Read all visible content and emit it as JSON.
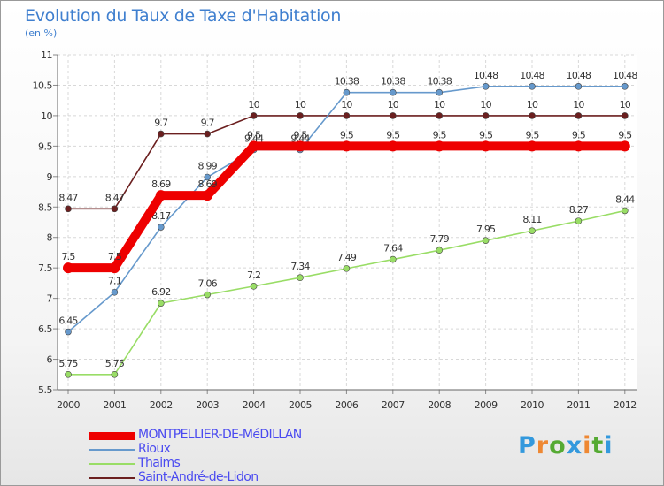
{
  "title": "Evolution du Taux de Taxe d'Habitation",
  "subtitle": "(en %)",
  "chart_data": {
    "type": "line",
    "title": "Evolution du Taux de Taxe d'Habitation",
    "ylabel": "(en %)",
    "xlabel": "",
    "x": [
      2000,
      2001,
      2002,
      2003,
      2004,
      2005,
      2006,
      2007,
      2008,
      2009,
      2010,
      2011,
      2012
    ],
    "ylim": [
      5.5,
      11
    ],
    "yticks": [
      5.5,
      6,
      6.5,
      7,
      7.5,
      8,
      8.5,
      9,
      9.5,
      10,
      10.5,
      11
    ],
    "ytick_labels": [
      "5.5",
      "6",
      "6.5",
      "7",
      "7.5",
      "8",
      "8.5",
      "9",
      "9.5",
      "10",
      "10.5",
      "11"
    ],
    "grid": true,
    "legend_position": "bottom-left",
    "series": [
      {
        "name": "Saint-André-de-Lidon",
        "color": "#6b1f1f",
        "values": [
          8.47,
          8.47,
          9.7,
          9.7,
          10,
          10,
          10,
          10,
          10,
          10,
          10,
          10,
          10
        ],
        "labels": [
          "8.47",
          "8.47",
          "9.7",
          "9.7",
          "10",
          "10",
          "10",
          "10",
          "10",
          "10",
          "10",
          "10",
          "10"
        ]
      },
      {
        "name": "Thaims",
        "color": "#99dd66",
        "values": [
          5.75,
          5.75,
          6.92,
          7.06,
          7.2,
          7.34,
          7.49,
          7.64,
          7.79,
          7.95,
          8.11,
          8.27,
          8.44
        ],
        "labels": [
          "5.75",
          "5.75",
          "6.92",
          "7.06",
          "7.2",
          "7.34",
          "7.49",
          "7.64",
          "7.79",
          "7.95",
          "8.11",
          "8.27",
          "8.44"
        ]
      },
      {
        "name": "Rioux",
        "color": "#6699cc",
        "values": [
          6.45,
          7.1,
          8.17,
          8.99,
          9.44,
          9.44,
          10.38,
          10.38,
          10.38,
          10.48,
          10.48,
          10.48,
          10.48
        ],
        "labels": [
          "6.45",
          "7.1",
          "8.17",
          "8.99",
          "9.44",
          "9.44",
          "10.38",
          "10.38",
          "10.38",
          "10.48",
          "10.48",
          "10.48",
          "10.48"
        ]
      },
      {
        "name": "MONTPELLIER-DE-MéDILLAN",
        "color": "#ee0000",
        "values": [
          7.5,
          7.5,
          8.69,
          8.69,
          9.5,
          9.5,
          9.5,
          9.5,
          9.5,
          9.5,
          9.5,
          9.5,
          9.5
        ],
        "labels": [
          "7.5",
          "7.5",
          "8.69",
          "8.69",
          "9.5",
          "9.5",
          "9.5",
          "9.5",
          "9.5",
          "9.5",
          "9.5",
          "9.5",
          "9.5"
        ]
      }
    ]
  },
  "legend": [
    {
      "label": "MONTPELLIER-DE-MéDILLAN",
      "color": "#ee0000",
      "text_color": "#4a4af0",
      "thick": true
    },
    {
      "label": "Rioux",
      "color": "#6699cc",
      "text_color": "#4a4af0",
      "thick": false
    },
    {
      "label": "Thaims",
      "color": "#99dd66",
      "text_color": "#4a4af0",
      "thick": false
    },
    {
      "label": "Saint-André-de-Lidon",
      "color": "#6b1f1f",
      "text_color": "#4a4af0",
      "thick": false
    }
  ],
  "logo": {
    "letters": [
      "P",
      "r",
      "o",
      "x",
      "i",
      "t",
      "i"
    ],
    "colors": [
      "#3399dd",
      "#ee8833",
      "#55aa33",
      "#3399dd",
      "#ee8833",
      "#55aa33",
      "#3399dd"
    ]
  }
}
